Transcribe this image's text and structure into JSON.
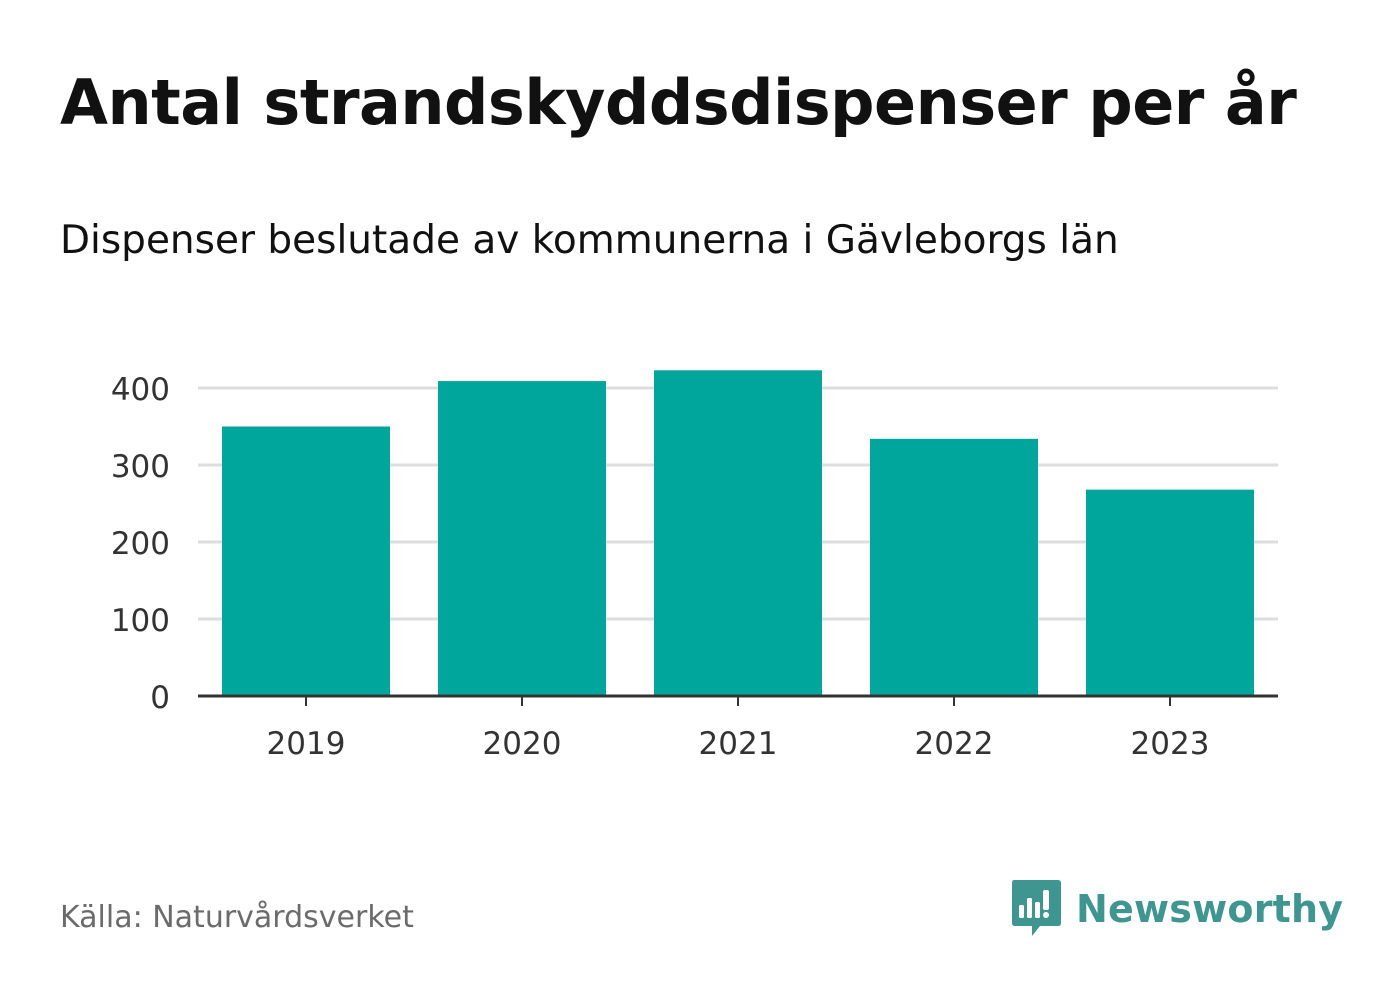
{
  "title": "Antal strandskyddsdispenser per år",
  "subtitle": "Dispenser beslutade av kommunerna i Gävleborgs län",
  "source": "Källa: Naturvårdsverket",
  "brand": {
    "name": "Newsworthy",
    "icon": "newsworthy-logo-icon",
    "color": "#3f958f"
  },
  "colors": {
    "bar": "#00a59b",
    "grid": "#dddddd",
    "axis": "#333333",
    "text": "#333333"
  },
  "chart_data": {
    "type": "bar",
    "categories": [
      "2019",
      "2020",
      "2021",
      "2022",
      "2023"
    ],
    "values": [
      350,
      409,
      423,
      334,
      268
    ],
    "yticks": [
      "0",
      "100",
      "200",
      "300",
      "400"
    ],
    "ylim": [
      0,
      440
    ],
    "grid": true
  }
}
